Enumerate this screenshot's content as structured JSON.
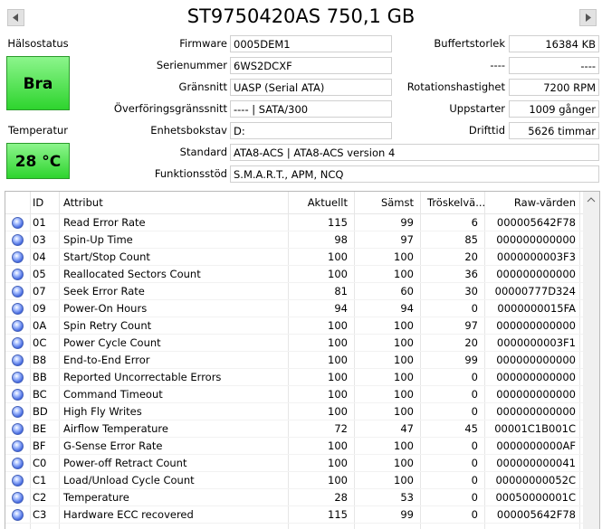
{
  "title": "ST9750420AS 750,1 GB",
  "health": {
    "label": "Hälsostatus",
    "value": "Bra"
  },
  "temperature": {
    "label": "Temperatur",
    "value": "28 °C"
  },
  "fields": [
    {
      "label": "Firmware",
      "value": "0005DEM1"
    },
    {
      "label": "Serienummer",
      "value": "6WS2DCXF"
    },
    {
      "label": "Gränsnitt",
      "value": "UASP (Serial ATA)"
    },
    {
      "label": "Överföringsgränssnitt",
      "value": "---- | SATA/300"
    },
    {
      "label": "Enhetsbokstav",
      "value": "D:"
    },
    {
      "label": "Standard",
      "value": "ATA8-ACS | ATA8-ACS version 4"
    },
    {
      "label": "Funktionsstöd",
      "value": "S.M.A.R.T., APM, NCQ"
    }
  ],
  "right_fields": [
    {
      "label": "Buffertstorlek",
      "value": "16384 KB"
    },
    {
      "label": "----",
      "value": "----"
    },
    {
      "label": "Rotationshastighet",
      "value": "7200 RPM"
    },
    {
      "label": "Uppstarter",
      "value": "1009 gånger"
    },
    {
      "label": "Drifttid",
      "value": "5626 timmar"
    }
  ],
  "table": {
    "columns": [
      "ID",
      "Attribut",
      "Aktuellt",
      "Sämst",
      "Tröskelvä...",
      "Raw-värden"
    ],
    "rows": [
      [
        "01",
        "Read Error Rate",
        115,
        99,
        6,
        "000005642F78"
      ],
      [
        "03",
        "Spin-Up Time",
        98,
        97,
        85,
        "000000000000"
      ],
      [
        "04",
        "Start/Stop Count",
        100,
        100,
        20,
        "0000000003F3"
      ],
      [
        "05",
        "Reallocated Sectors Count",
        100,
        100,
        36,
        "000000000000"
      ],
      [
        "07",
        "Seek Error Rate",
        81,
        60,
        30,
        "00000777D324"
      ],
      [
        "09",
        "Power-On Hours",
        94,
        94,
        0,
        "0000000015FA"
      ],
      [
        "0A",
        "Spin Retry Count",
        100,
        100,
        97,
        "000000000000"
      ],
      [
        "0C",
        "Power Cycle Count",
        100,
        100,
        20,
        "0000000003F1"
      ],
      [
        "B8",
        "End-to-End Error",
        100,
        100,
        99,
        "000000000000"
      ],
      [
        "BB",
        "Reported Uncorrectable Errors",
        100,
        100,
        0,
        "000000000000"
      ],
      [
        "BC",
        "Command Timeout",
        100,
        100,
        0,
        "000000000000"
      ],
      [
        "BD",
        "High Fly Writes",
        100,
        100,
        0,
        "000000000000"
      ],
      [
        "BE",
        "Airflow Temperature",
        72,
        47,
        45,
        "00001C1B001C"
      ],
      [
        "BF",
        "G-Sense Error Rate",
        100,
        100,
        0,
        "0000000000AF"
      ],
      [
        "C0",
        "Power-off Retract Count",
        100,
        100,
        0,
        "000000000041"
      ],
      [
        "C1",
        "Load/Unload Cycle Count",
        100,
        100,
        0,
        "00000000052C"
      ],
      [
        "C2",
        "Temperature",
        28,
        53,
        0,
        "00050000001C"
      ],
      [
        "C3",
        "Hardware ECC recovered",
        115,
        99,
        0,
        "000005642F78"
      ]
    ]
  }
}
